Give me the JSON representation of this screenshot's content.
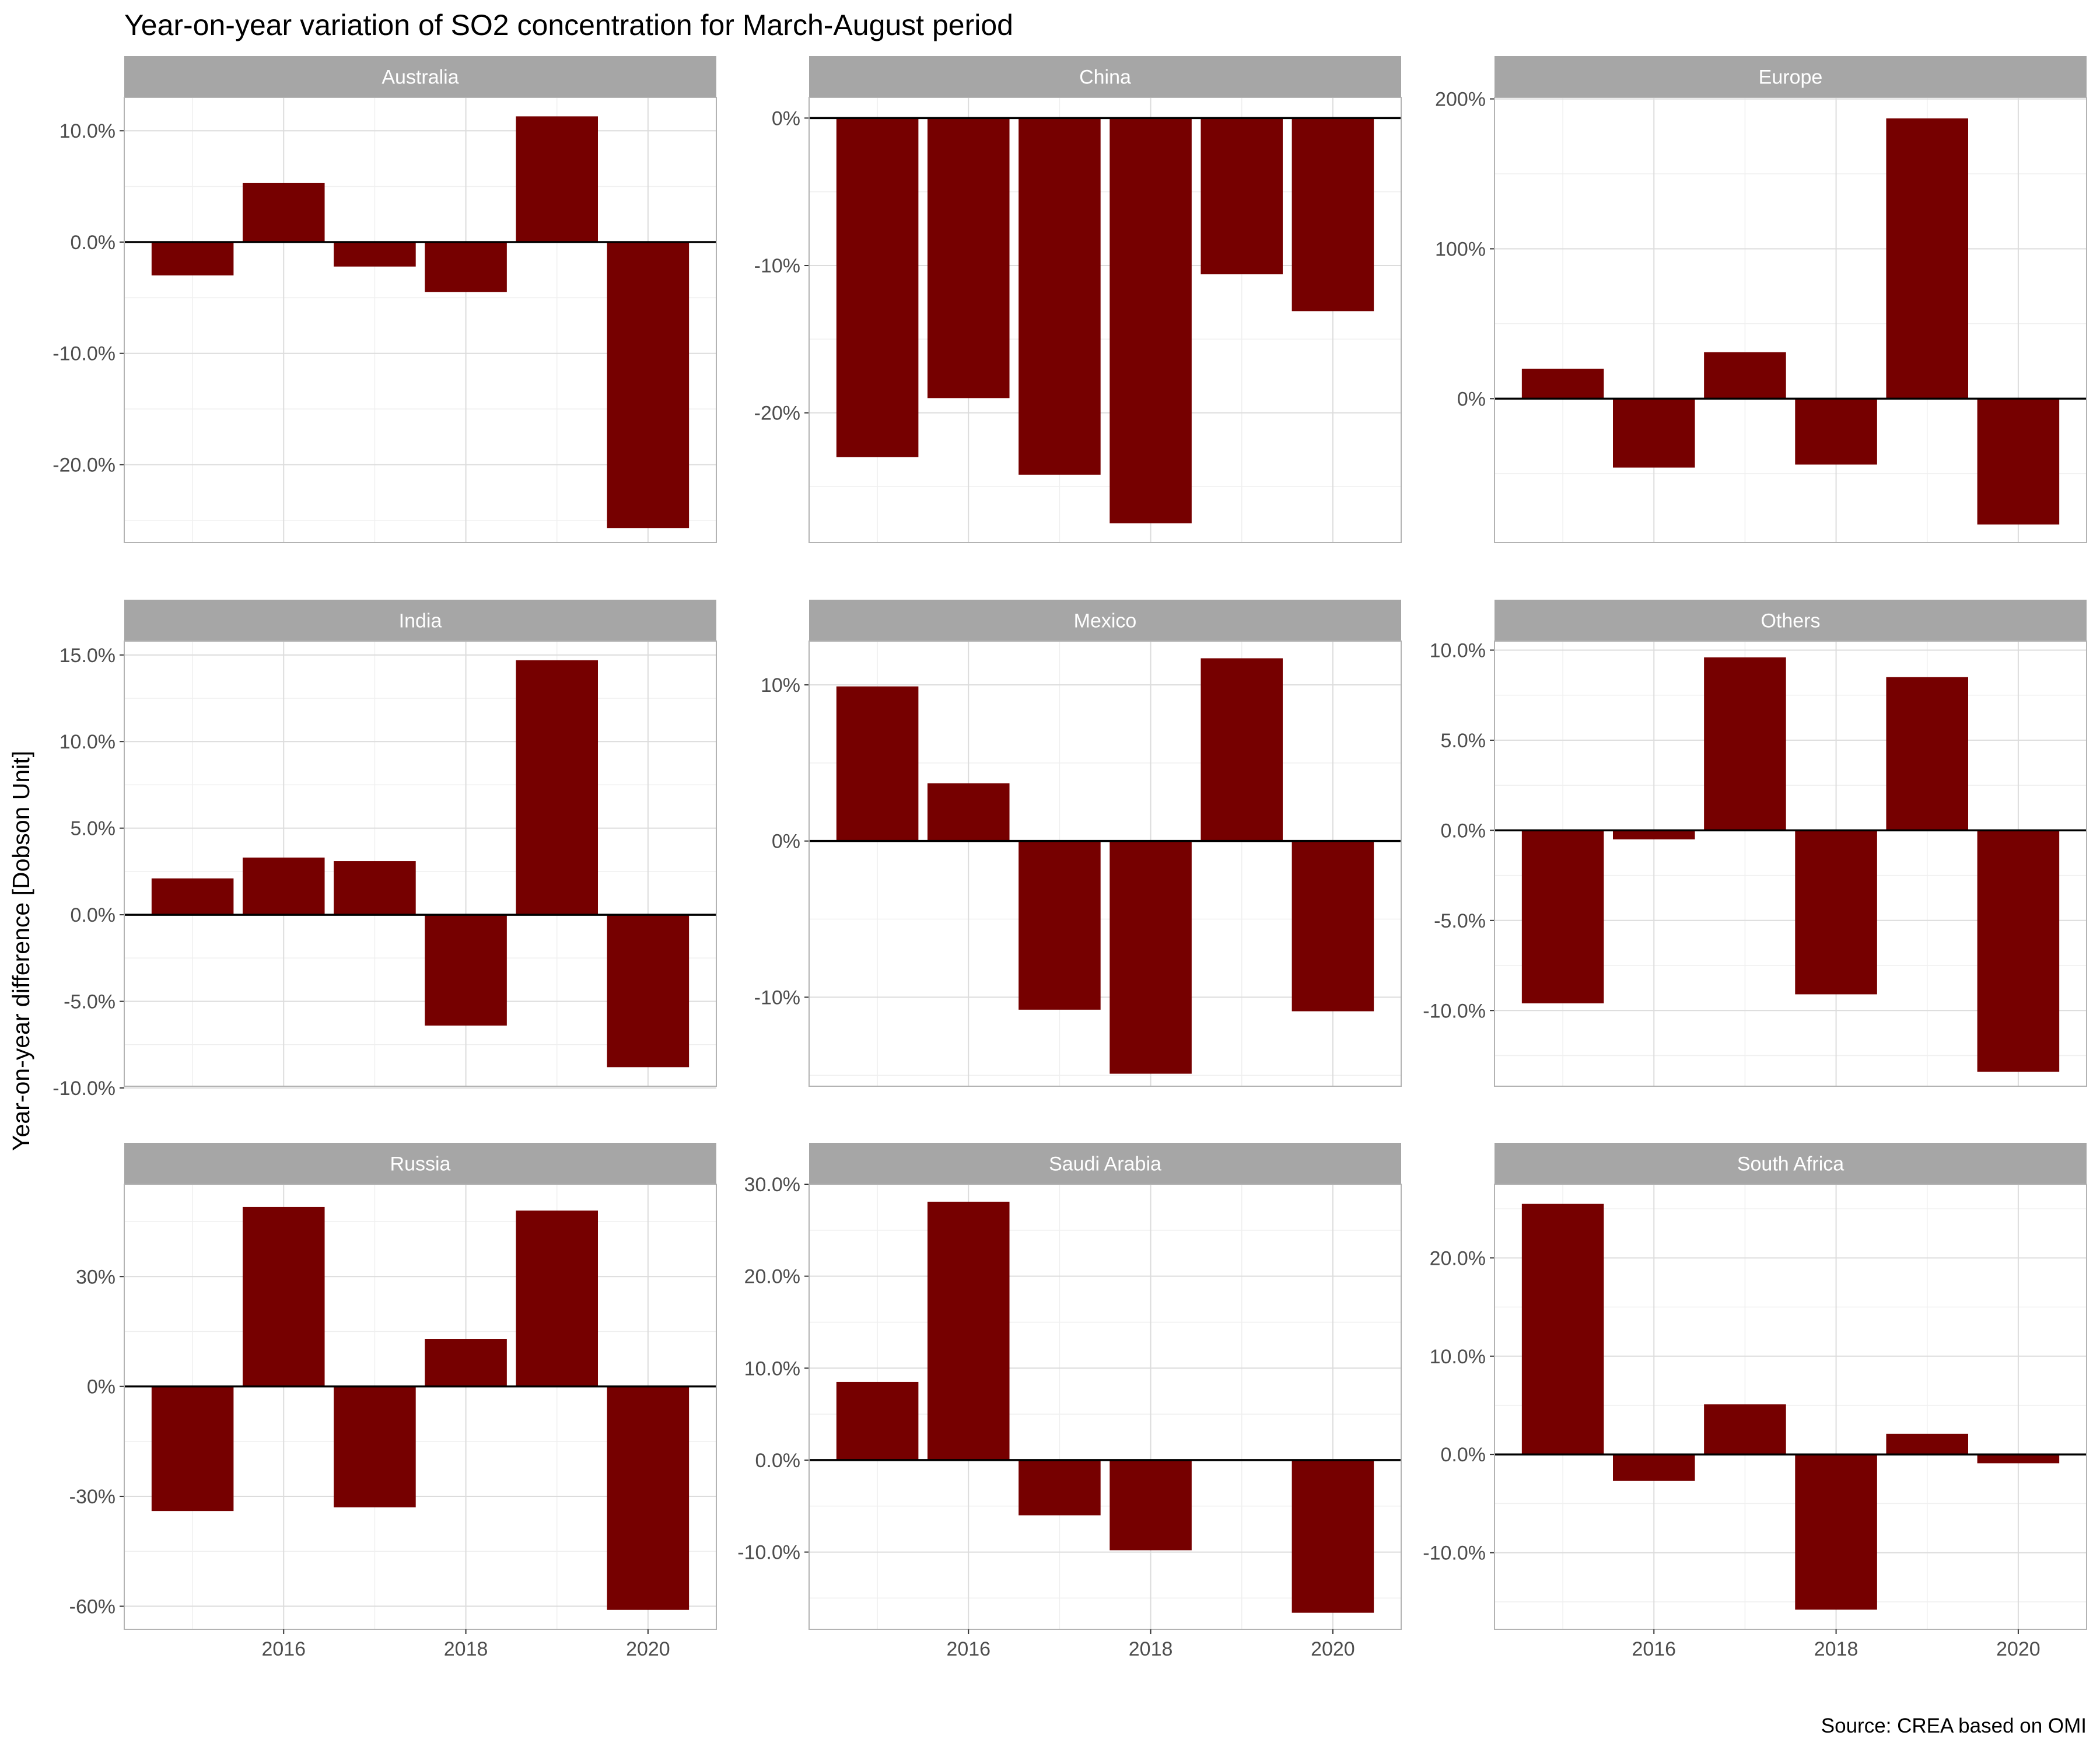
{
  "title": "Year-on-year variation of SO2 concentration for March-August period",
  "ylabel": "Year-on-year difference [Dobson Unit]",
  "caption": "Source: CREA based on OMI",
  "colors": {
    "bar": "#760000",
    "strip": "#a6a6a6",
    "strip_text": "#ffffff",
    "grid_major": "#dcdcdc",
    "grid_minor": "#efefef",
    "panel_border": "#b3b3b3",
    "zero_line": "#000000",
    "tick_text": "#4d4d4d"
  },
  "x_ticks": [
    "2016",
    "2018",
    "2020"
  ],
  "chart_data": [
    {
      "type": "bar",
      "panel": "Australia",
      "x": [
        2015,
        2016,
        2017,
        2018,
        2019,
        2020
      ],
      "values": [
        -3.0,
        5.3,
        -2.2,
        -4.5,
        11.3,
        -25.7
      ],
      "ylim": [
        -27.0,
        13.0
      ],
      "yticks": [
        -20,
        -10,
        0,
        10
      ],
      "ytick_labels": [
        "-20.0%",
        "-10.0%",
        "0.0%",
        "10.0%"
      ]
    },
    {
      "type": "bar",
      "panel": "China",
      "x": [
        2015,
        2016,
        2017,
        2018,
        2019,
        2020
      ],
      "values": [
        -23.0,
        -19.0,
        -24.2,
        -27.5,
        -10.6,
        -13.1
      ],
      "ylim": [
        -28.8,
        1.4
      ],
      "yticks": [
        -20,
        -10,
        0
      ],
      "ytick_labels": [
        "-20%",
        "-10%",
        "0%"
      ]
    },
    {
      "type": "bar",
      "panel": "Europe",
      "x": [
        2015,
        2016,
        2017,
        2018,
        2019,
        2020
      ],
      "values": [
        20,
        -46,
        31,
        -44,
        187,
        -84
      ],
      "ylim": [
        -96,
        201
      ],
      "yticks": [
        0,
        100,
        200
      ],
      "ytick_labels": [
        "0%",
        "100%",
        "200%"
      ]
    },
    {
      "type": "bar",
      "panel": "India",
      "x": [
        2015,
        2016,
        2017,
        2018,
        2019,
        2020
      ],
      "values": [
        2.1,
        3.3,
        3.1,
        -6.4,
        14.7,
        -8.8
      ],
      "ylim": [
        -9.9,
        15.8
      ],
      "yticks": [
        -10,
        -5,
        0,
        5,
        10,
        15
      ],
      "ytick_labels": [
        "-10.0%",
        "-5.0%",
        "0.0%",
        "5.0%",
        "10.0%",
        "15.0%"
      ]
    },
    {
      "type": "bar",
      "panel": "Mexico",
      "x": [
        2015,
        2016,
        2017,
        2018,
        2019,
        2020
      ],
      "values": [
        9.9,
        3.7,
        -10.8,
        -14.9,
        11.7,
        -10.9
      ],
      "ylim": [
        -15.7,
        12.8
      ],
      "yticks": [
        -10,
        0,
        10
      ],
      "ytick_labels": [
        "-10%",
        "0%",
        "10%"
      ]
    },
    {
      "type": "bar",
      "panel": "Others",
      "x": [
        2015,
        2016,
        2017,
        2018,
        2019,
        2020
      ],
      "values": [
        -9.6,
        -0.5,
        9.6,
        -9.1,
        8.5,
        -13.4
      ],
      "ylim": [
        -14.2,
        10.5
      ],
      "yticks": [
        -10,
        -5,
        0,
        5,
        10
      ],
      "ytick_labels": [
        "-10.0%",
        "-5.0%",
        "0.0%",
        "5.0%",
        "10.0%"
      ]
    },
    {
      "type": "bar",
      "panel": "Russia",
      "x": [
        2015,
        2016,
        2017,
        2018,
        2019,
        2020
      ],
      "values": [
        -34,
        49,
        -33,
        13,
        48,
        -61
      ],
      "ylim": [
        -66.3,
        55.2
      ],
      "yticks": [
        -60,
        -30,
        0,
        30
      ],
      "ytick_labels": [
        "-60%",
        "-30%",
        "0%",
        "30%"
      ]
    },
    {
      "type": "bar",
      "panel": "Saudi Arabia",
      "x": [
        2015,
        2016,
        2017,
        2018,
        2019,
        2020
      ],
      "values": [
        8.5,
        28.1,
        -6.0,
        -9.8,
        0.0,
        -16.6
      ],
      "ylim": [
        -18.4,
        30.0
      ],
      "yticks": [
        -10,
        0,
        10,
        20,
        30
      ],
      "ytick_labels": [
        "-10.0%",
        "0.0%",
        "10.0%",
        "20.0%",
        "30.0%"
      ]
    },
    {
      "type": "bar",
      "panel": "South Africa",
      "x": [
        2015,
        2016,
        2017,
        2018,
        2019,
        2020
      ],
      "values": [
        25.5,
        -2.7,
        5.1,
        -15.8,
        2.1,
        -0.9
      ],
      "ylim": [
        -17.8,
        27.5
      ],
      "yticks": [
        -10,
        0,
        10,
        20
      ],
      "ytick_labels": [
        "-10.0%",
        "0.0%",
        "10.0%",
        "20.0%"
      ]
    }
  ]
}
